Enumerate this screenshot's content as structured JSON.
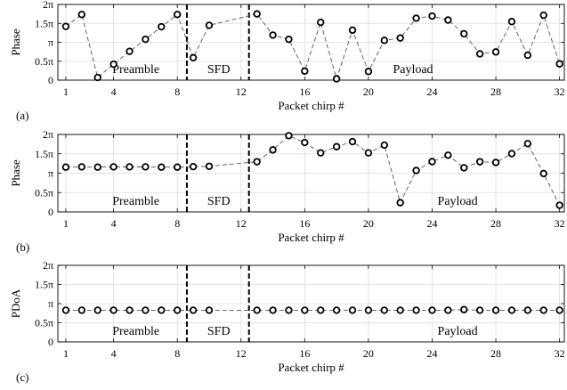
{
  "chart_data": [
    {
      "type": "scatter",
      "panel": "(a)",
      "xlabel": "Packet chirp #",
      "ylabel": "Phase",
      "xlim": [
        0.5,
        32.3
      ],
      "ylim": [
        0,
        6.2832
      ],
      "xticks": [
        1,
        4,
        8,
        12,
        16,
        20,
        24,
        28,
        32
      ],
      "yticks": [
        {
          "value": 0,
          "label": "0"
        },
        {
          "value": 1.5708,
          "label": "0.5π"
        },
        {
          "value": 3.1416,
          "label": "π"
        },
        {
          "value": 4.7124,
          "label": "1.5π"
        },
        {
          "value": 6.2832,
          "label": "2π"
        }
      ],
      "grid": true,
      "markers": "open-circle",
      "connector": "dashed",
      "boundaries": [
        8.6,
        12.5
      ],
      "regions": [
        {
          "label": "Preamble",
          "x": 5.4
        },
        {
          "label": "SFD",
          "x": 10.6
        },
        {
          "label": "Payload",
          "x": 22.8
        }
      ],
      "series": [
        {
          "x": [
            1,
            2,
            3,
            4,
            5,
            6,
            7,
            8,
            9,
            10,
            13,
            14,
            15,
            16,
            17,
            18,
            19,
            20,
            21,
            22,
            23,
            24,
            25,
            26,
            27,
            28,
            29,
            30,
            31,
            32
          ],
          "y": [
            4.46,
            5.45,
            0.22,
            1.32,
            2.39,
            3.39,
            4.43,
            5.45,
            1.86,
            4.55,
            5.5,
            3.74,
            3.39,
            0.75,
            4.8,
            0.11,
            4.15,
            0.72,
            3.3,
            3.5,
            5.14,
            5.32,
            4.99,
            3.85,
            2.18,
            2.34,
            4.86,
            2.07,
            5.39,
            1.35
          ]
        }
      ]
    },
    {
      "type": "scatter",
      "panel": "(b)",
      "xlabel": "Packet chirp #",
      "ylabel": "Phase",
      "xlim": [
        0.5,
        32.3
      ],
      "ylim": [
        0,
        6.2832
      ],
      "xticks": [
        1,
        4,
        8,
        12,
        16,
        20,
        24,
        28,
        32
      ],
      "yticks": [
        {
          "value": 0,
          "label": "0"
        },
        {
          "value": 1.5708,
          "label": "0.5π"
        },
        {
          "value": 3.1416,
          "label": "π"
        },
        {
          "value": 4.7124,
          "label": "1.5π"
        },
        {
          "value": 6.2832,
          "label": "2π"
        }
      ],
      "grid": true,
      "markers": "open-circle",
      "connector": "dashed",
      "boundaries": [
        8.6,
        12.5
      ],
      "regions": [
        {
          "label": "Preamble",
          "x": 5.4
        },
        {
          "label": "SFD",
          "x": 10.6
        },
        {
          "label": "Payload",
          "x": 25.6
        }
      ],
      "series": [
        {
          "x": [
            1,
            2,
            3,
            4,
            5,
            6,
            7,
            8,
            9,
            10,
            13,
            14,
            15,
            16,
            17,
            18,
            19,
            20,
            21,
            22,
            23,
            24,
            25,
            26,
            27,
            28,
            29,
            30,
            31,
            32
          ],
          "y": [
            3.63,
            3.65,
            3.63,
            3.65,
            3.65,
            3.65,
            3.63,
            3.63,
            3.67,
            3.7,
            4.07,
            5.03,
            6.18,
            5.63,
            4.79,
            5.29,
            5.7,
            4.79,
            5.42,
            0.75,
            3.36,
            4.08,
            4.6,
            3.58,
            4.07,
            4.01,
            4.73,
            5.54,
            3.11,
            0.54
          ]
        }
      ]
    },
    {
      "type": "scatter",
      "panel": "(c)",
      "xlabel": "Packet chirp #",
      "ylabel": "PDoA",
      "xlim": [
        0.5,
        32.3
      ],
      "ylim": [
        0,
        6.2832
      ],
      "xticks": [
        1,
        4,
        8,
        12,
        16,
        20,
        24,
        28,
        32
      ],
      "yticks": [
        {
          "value": 0,
          "label": "0"
        },
        {
          "value": 1.5708,
          "label": "0.5π"
        },
        {
          "value": 3.1416,
          "label": "π"
        },
        {
          "value": 4.7124,
          "label": "1.5π"
        },
        {
          "value": 6.2832,
          "label": "2π"
        }
      ],
      "grid": true,
      "markers": "open-circle",
      "connector": "dashed",
      "boundaries": [
        8.6,
        12.5
      ],
      "regions": [
        {
          "label": "Preamble",
          "x": 5.4
        },
        {
          "label": "SFD",
          "x": 10.6
        },
        {
          "label": "Payload",
          "x": 25.6
        }
      ],
      "series": [
        {
          "x": [
            1,
            2,
            3,
            4,
            5,
            6,
            7,
            8,
            9,
            10,
            13,
            14,
            15,
            16,
            17,
            18,
            19,
            20,
            21,
            22,
            23,
            24,
            25,
            26,
            27,
            28,
            29,
            30,
            31,
            32
          ],
          "y": [
            2.6,
            2.6,
            2.6,
            2.6,
            2.6,
            2.6,
            2.6,
            2.6,
            2.6,
            2.6,
            2.6,
            2.6,
            2.6,
            2.6,
            2.6,
            2.6,
            2.6,
            2.6,
            2.6,
            2.6,
            2.6,
            2.6,
            2.6,
            2.65,
            2.6,
            2.6,
            2.6,
            2.6,
            2.6,
            2.6
          ]
        }
      ]
    }
  ]
}
